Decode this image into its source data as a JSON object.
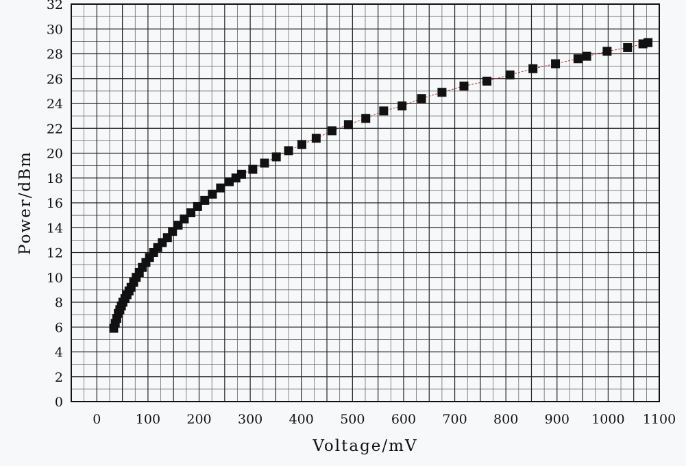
{
  "chart_data": {
    "type": "scatter",
    "title": "",
    "xlabel": "Voltage/mV",
    "ylabel": "Power/dBm",
    "xlim": [
      -50,
      1100
    ],
    "ylim": [
      0,
      32
    ],
    "x_ticks": [
      0,
      100,
      200,
      300,
      400,
      500,
      600,
      700,
      800,
      900,
      1000,
      1100
    ],
    "y_ticks": [
      0,
      2,
      4,
      6,
      8,
      10,
      12,
      14,
      16,
      18,
      20,
      22,
      24,
      26,
      28,
      30,
      32
    ],
    "grid": true,
    "legend": "none",
    "marker": "square",
    "marker_color": "#111111",
    "line_color": "#b03030",
    "series": [
      {
        "points": [
          [
            33,
            5.9
          ],
          [
            36,
            6.3
          ],
          [
            39,
            6.7
          ],
          [
            42,
            7.1
          ],
          [
            45,
            7.4
          ],
          [
            48,
            7.7
          ],
          [
            51,
            8.0
          ],
          [
            55,
            8.3
          ],
          [
            59,
            8.6
          ],
          [
            63,
            8.9
          ],
          [
            67,
            9.2
          ],
          [
            72,
            9.6
          ],
          [
            77,
            10.0
          ],
          [
            83,
            10.4
          ],
          [
            89,
            10.8
          ],
          [
            96,
            11.2
          ],
          [
            103,
            11.6
          ],
          [
            111,
            12.0
          ],
          [
            119,
            12.4
          ],
          [
            128,
            12.8
          ],
          [
            138,
            13.2
          ],
          [
            148,
            13.7
          ],
          [
            159,
            14.2
          ],
          [
            171,
            14.7
          ],
          [
            184,
            15.2
          ],
          [
            197,
            15.7
          ],
          [
            211,
            16.2
          ],
          [
            226,
            16.7
          ],
          [
            242,
            17.2
          ],
          [
            259,
            17.7
          ],
          [
            272,
            18.0
          ],
          [
            283,
            18.3
          ],
          [
            305,
            18.7
          ],
          [
            328,
            19.2
          ],
          [
            351,
            19.7
          ],
          [
            375,
            20.2
          ],
          [
            401,
            20.7
          ],
          [
            429,
            21.2
          ],
          [
            460,
            21.8
          ],
          [
            492,
            22.3
          ],
          [
            526,
            22.8
          ],
          [
            561,
            23.4
          ],
          [
            597,
            23.8
          ],
          [
            635,
            24.4
          ],
          [
            675,
            24.9
          ],
          [
            718,
            25.4
          ],
          [
            763,
            25.8
          ],
          [
            808,
            26.3
          ],
          [
            853,
            26.8
          ],
          [
            897,
            27.2
          ],
          [
            941,
            27.6
          ],
          [
            958,
            27.8
          ],
          [
            998,
            28.2
          ],
          [
            1038,
            28.5
          ],
          [
            1068,
            28.8
          ],
          [
            1078,
            28.9
          ]
        ]
      }
    ]
  }
}
